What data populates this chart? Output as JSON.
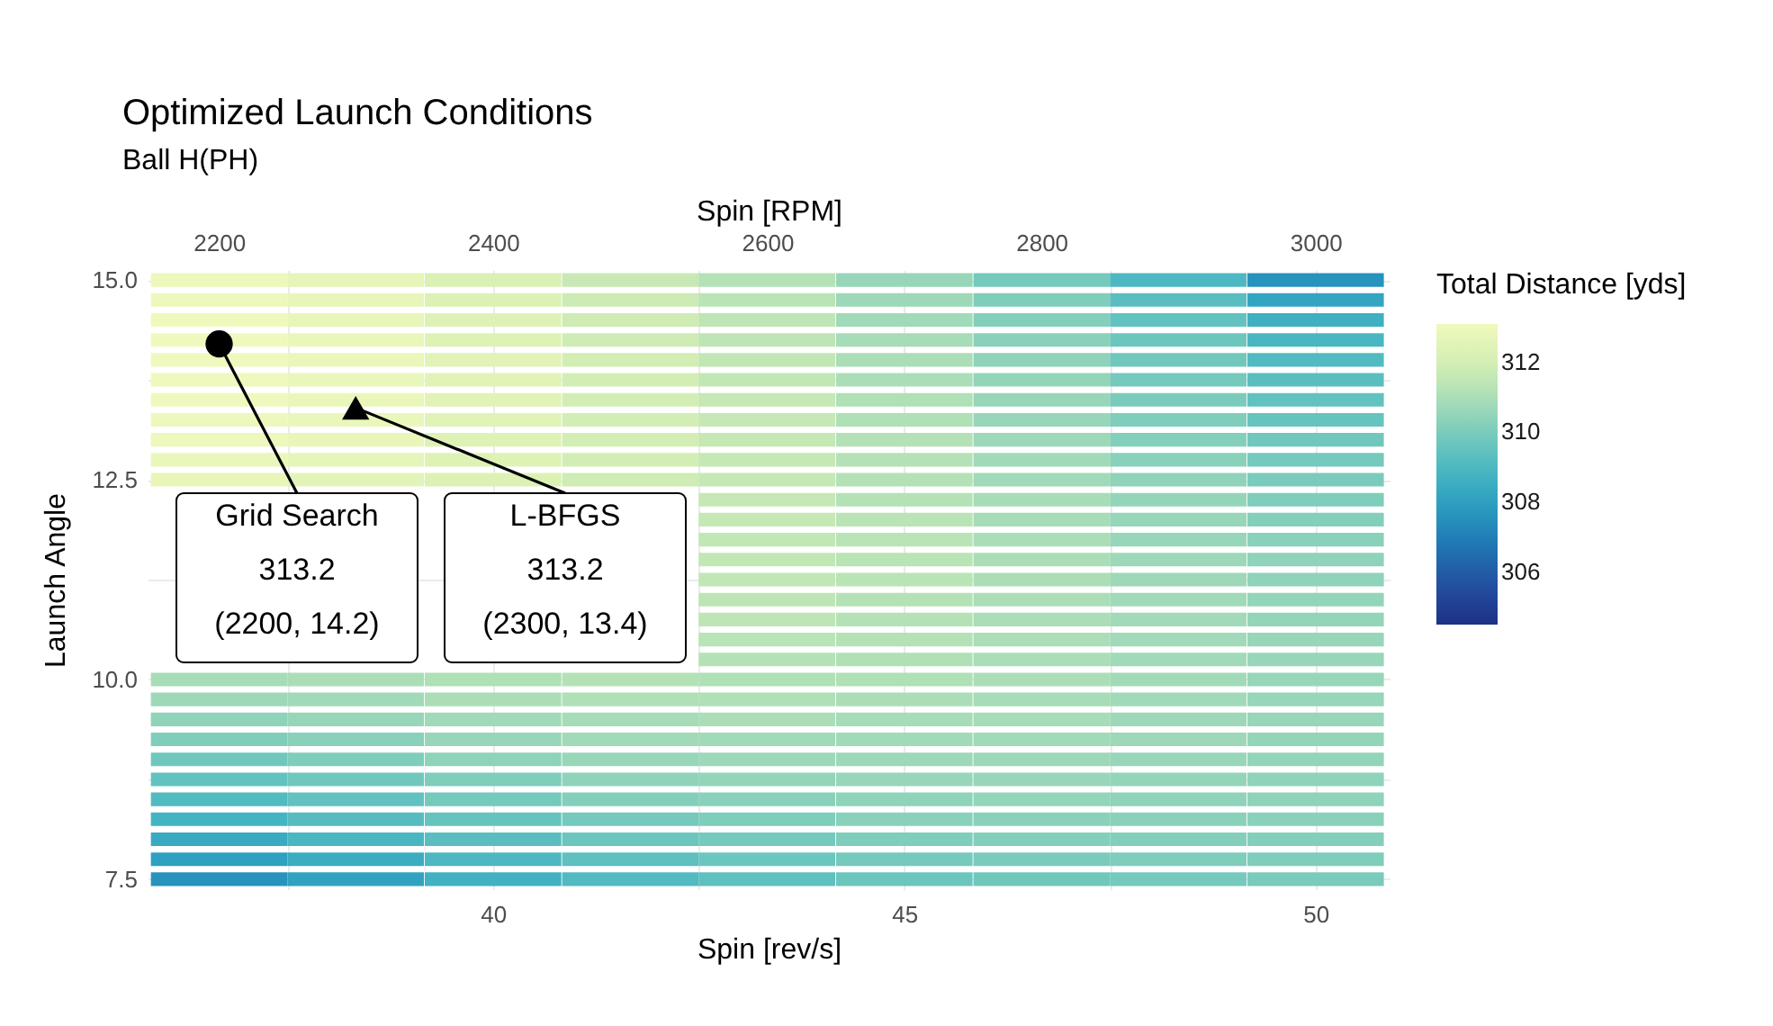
{
  "chart_data": {
    "type": "heatmap",
    "title": "Optimized Launch Conditions",
    "subtitle": "Ball H(PH)",
    "xlabel": "Spin [rev/s]",
    "x2label": "Spin [RPM]",
    "ylabel": "Launch Angle",
    "clabel": "Total Distance [yds]",
    "xlim": [
      35.8,
      50.9
    ],
    "xticks": [
      {
        "value": 37.5,
        "label": null
      },
      40,
      {
        "value": 42.5,
        "label": null
      },
      45,
      {
        "value": 47.5,
        "label": null
      },
      50
    ],
    "x2lim": [
      2148,
      3054
    ],
    "x2ticks": [
      2200,
      2400,
      2600,
      2800,
      3000
    ],
    "y2lim": [
      7.375,
      15.125
    ],
    "y2ticks": [
      7.5,
      {
        "value": 8.75,
        "label": null
      },
      {
        "value": 10,
        "label": "10.0"
      },
      {
        "value": 11.25,
        "label": null
      },
      12.5,
      {
        "value": 13.75,
        "label": null
      },
      {
        "value": 15,
        "label": "15.0"
      }
    ],
    "grid": true,
    "clim": [
      304.5,
      313.1
    ],
    "cticks": [
      306,
      308,
      310,
      312
    ],
    "x": [
      36.67,
      38.33,
      40,
      41.67,
      43.33,
      45,
      46.67,
      48.33,
      50
    ],
    "y_categories": [
      null,
      null,
      null,
      null,
      null,
      null,
      null,
      null,
      null,
      null,
      null,
      null,
      null,
      null,
      null,
      null,
      null,
      null,
      null,
      null,
      null,
      null,
      null,
      null,
      null,
      null,
      null,
      null,
      null,
      null,
      null
    ],
    "cells": [
      [
        313.0,
        312.7,
        312.2,
        311.7,
        311.2,
        310.6,
        309.9,
        309.0,
        307.6
      ],
      [
        313.0,
        312.8,
        312.3,
        311.8,
        311.3,
        310.7,
        310.1,
        309.3,
        308.2
      ],
      [
        313.1,
        312.8,
        312.4,
        311.9,
        311.4,
        310.8,
        310.2,
        309.5,
        308.6
      ],
      [
        313.1,
        312.9,
        312.4,
        311.9,
        311.4,
        310.9,
        310.3,
        309.7,
        308.9
      ],
      [
        313.1,
        312.9,
        312.5,
        312.0,
        311.5,
        311.0,
        310.4,
        309.8,
        309.1
      ],
      [
        313.1,
        312.9,
        312.5,
        312.0,
        311.5,
        311.0,
        310.5,
        309.9,
        309.3
      ],
      [
        313.1,
        312.9,
        312.5,
        312.0,
        311.6,
        311.1,
        310.6,
        310.0,
        309.5
      ],
      [
        313.0,
        312.9,
        312.5,
        312.0,
        311.6,
        311.1,
        310.6,
        310.1,
        309.6
      ],
      [
        313.0,
        312.8,
        312.4,
        312.0,
        311.6,
        311.2,
        310.7,
        310.2,
        309.8
      ],
      [
        312.9,
        312.7,
        312.4,
        312.0,
        311.6,
        311.2,
        310.8,
        310.3,
        309.9
      ],
      [
        312.8,
        312.6,
        312.3,
        311.9,
        311.6,
        311.2,
        310.8,
        310.4,
        310.0
      ],
      [
        null,
        null,
        null,
        null,
        311.6,
        311.2,
        310.9,
        310.5,
        310.1
      ],
      [
        null,
        null,
        null,
        null,
        311.6,
        311.3,
        310.9,
        310.6,
        310.2
      ],
      [
        null,
        null,
        null,
        null,
        311.5,
        311.3,
        311.0,
        310.6,
        310.3
      ],
      [
        null,
        null,
        null,
        null,
        311.5,
        311.3,
        311.0,
        310.7,
        310.4
      ],
      [
        null,
        null,
        null,
        null,
        311.5,
        311.3,
        311.0,
        310.7,
        310.4
      ],
      [
        null,
        null,
        null,
        null,
        311.4,
        311.2,
        311.0,
        310.8,
        310.5
      ],
      [
        null,
        null,
        null,
        null,
        311.4,
        311.2,
        311.0,
        310.8,
        310.5
      ],
      [
        null,
        null,
        null,
        null,
        311.3,
        311.2,
        311.0,
        310.8,
        310.6
      ],
      [
        null,
        null,
        null,
        null,
        311.2,
        311.1,
        311.0,
        310.8,
        310.6
      ],
      [
        310.9,
        311.0,
        311.1,
        311.2,
        311.1,
        311.1,
        311.0,
        310.8,
        310.6
      ],
      [
        310.7,
        310.8,
        311.0,
        311.1,
        311.1,
        311.0,
        310.9,
        310.8,
        310.6
      ],
      [
        310.4,
        310.6,
        310.8,
        310.9,
        311.0,
        310.9,
        310.9,
        310.7,
        310.6
      ],
      [
        310.1,
        310.3,
        310.6,
        310.8,
        310.8,
        310.8,
        310.8,
        310.7,
        310.5
      ],
      [
        309.8,
        310.1,
        310.4,
        310.6,
        310.7,
        310.7,
        310.7,
        310.6,
        310.5
      ],
      [
        309.5,
        309.8,
        310.1,
        310.4,
        310.5,
        310.6,
        310.6,
        310.5,
        310.4
      ],
      [
        309.1,
        309.5,
        309.9,
        310.2,
        310.3,
        310.4,
        310.5,
        310.4,
        310.4
      ],
      [
        308.8,
        309.2,
        309.6,
        309.9,
        310.1,
        310.3,
        310.3,
        310.3,
        310.3
      ],
      [
        308.4,
        308.9,
        309.3,
        309.7,
        309.9,
        310.1,
        310.2,
        310.2,
        310.2
      ],
      [
        308.0,
        308.5,
        309.0,
        309.4,
        309.7,
        309.9,
        310.0,
        310.1,
        310.1
      ],
      [
        307.6,
        308.1,
        308.7,
        309.1,
        309.4,
        309.7,
        309.8,
        309.9,
        310.0
      ]
    ],
    "series": [
      {
        "type": "scatter",
        "axis": "y2",
        "x": [
          36.67
        ],
        "values": [
          14.2
        ],
        "marker": "circle",
        "color": "#000000"
      },
      {
        "type": "scatter",
        "axis": "y2",
        "x": [
          38.33
        ],
        "values": [
          13.4
        ],
        "marker": "triangle",
        "color": "#000000"
      }
    ],
    "annotations": [
      "Grid Search\n313.2\n(2200, 14.2)",
      "L-BFGS\n313.2\n(2300, 13.4)"
    ]
  }
}
